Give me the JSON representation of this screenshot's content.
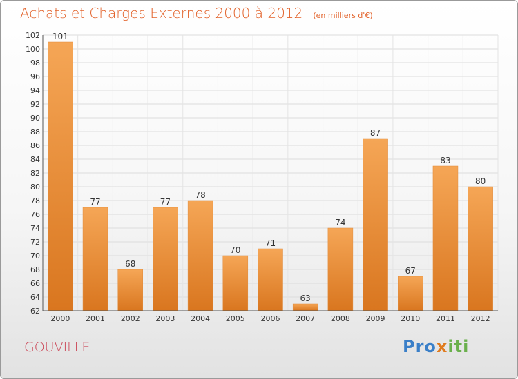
{
  "header": {
    "title": "Achats et Charges Externes 2000 à 2012",
    "unit_note": "(en milliers d'€)"
  },
  "footer": {
    "place": "GOUVILLE",
    "logo_part1": "Pro",
    "logo_part2": "x",
    "logo_part3": "iti"
  },
  "colors": {
    "bar_top": "#f5a656",
    "bar_bottom": "#d9761f",
    "title": "#e2622a",
    "place": "#cc4a5a"
  },
  "chart_data": {
    "type": "bar",
    "categories": [
      "2000",
      "2001",
      "2002",
      "2003",
      "2004",
      "2005",
      "2006",
      "2007",
      "2008",
      "2009",
      "2010",
      "2011",
      "2012"
    ],
    "values": [
      101,
      77,
      68,
      77,
      78,
      70,
      71,
      63,
      74,
      87,
      67,
      83,
      80
    ],
    "title": "Achats et Charges Externes 2000 à 2012",
    "xlabel": "",
    "ylabel": "",
    "ylim": [
      62,
      102
    ],
    "yticks": [
      62,
      64,
      66,
      68,
      70,
      72,
      74,
      76,
      78,
      80,
      82,
      84,
      86,
      88,
      90,
      92,
      94,
      96,
      98,
      100,
      102
    ],
    "grid": true,
    "data_labels": true
  }
}
